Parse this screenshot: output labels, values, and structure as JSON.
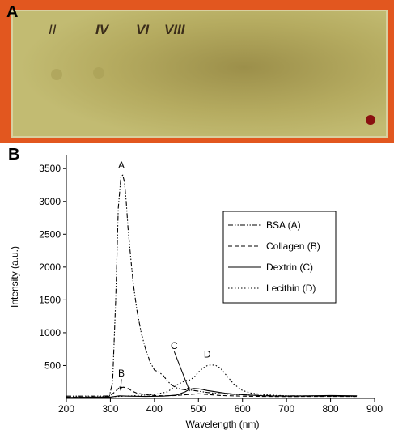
{
  "panels": {
    "a_label": "A",
    "b_label": "B"
  },
  "plate": {
    "marks": [
      "II",
      "IV",
      "VI",
      "VIII"
    ],
    "colors": {
      "background": "#e2571f",
      "plate": "#b3a85a",
      "plate_edge": "#d8d0a0",
      "ink": "#3a2c1a",
      "dot": "#8a1010"
    }
  },
  "chart_data": {
    "type": "line",
    "title": "",
    "xlabel": "Wavelength (nm)",
    "ylabel": "Intensity (a.u.)",
    "xlim": [
      200,
      900
    ],
    "ylim": [
      0,
      3700
    ],
    "xticks": [
      200,
      300,
      400,
      500,
      600,
      700,
      800,
      900
    ],
    "yticks": [
      500,
      1000,
      1500,
      2000,
      2500,
      3000,
      3500
    ],
    "grid": false,
    "legend_position": "right",
    "series": [
      {
        "name": "BSA (A)",
        "style": "dashdotdot",
        "x": [
          200,
          280,
          298,
          305,
          312,
          318,
          324,
          328,
          332,
          336,
          340,
          346,
          352,
          360,
          370,
          380,
          390,
          400,
          410,
          420,
          430,
          440,
          450,
          460,
          470,
          480,
          490,
          500,
          520,
          550,
          600,
          650,
          700,
          750,
          800,
          850,
          860
        ],
        "y": [
          35,
          35,
          40,
          250,
          1500,
          2900,
          3380,
          3400,
          3300,
          3000,
          2600,
          2150,
          1750,
          1350,
          1000,
          750,
          560,
          430,
          400,
          350,
          260,
          200,
          160,
          140,
          130,
          130,
          120,
          110,
          90,
          70,
          55,
          45,
          40,
          38,
          35,
          35,
          35
        ]
      },
      {
        "name": "Collagen (B)",
        "style": "dashed",
        "x": [
          200,
          290,
          300,
          310,
          320,
          330,
          340,
          350,
          360,
          380,
          400,
          420,
          450,
          480,
          500,
          520,
          550,
          600,
          650,
          700,
          750,
          800,
          860
        ],
        "y": [
          20,
          20,
          40,
          100,
          160,
          170,
          150,
          110,
          80,
          55,
          45,
          40,
          45,
          60,
          70,
          60,
          45,
          35,
          30,
          28,
          30,
          30,
          30
        ]
      },
      {
        "name": "Dextrin (C)",
        "style": "solid",
        "x": [
          200,
          300,
          320,
          340,
          380,
          420,
          450,
          470,
          480,
          490,
          500,
          510,
          520,
          540,
          560,
          580,
          600,
          650,
          700,
          750,
          800,
          860
        ],
        "y": [
          15,
          20,
          40,
          35,
          30,
          35,
          50,
          100,
          140,
          150,
          145,
          135,
          120,
          100,
          80,
          65,
          55,
          40,
          35,
          40,
          45,
          40
        ]
      },
      {
        "name": "Lecithin (D)",
        "style": "dotted",
        "x": [
          200,
          300,
          350,
          400,
          430,
          450,
          470,
          480,
          490,
          500,
          510,
          520,
          530,
          540,
          550,
          560,
          570,
          580,
          600,
          620,
          650,
          700,
          750,
          800,
          860
        ],
        "y": [
          20,
          25,
          40,
          60,
          100,
          200,
          270,
          280,
          320,
          400,
          460,
          500,
          510,
          500,
          460,
          380,
          300,
          220,
          120,
          80,
          55,
          40,
          35,
          35,
          30
        ]
      }
    ],
    "annotations": [
      {
        "text": "A",
        "x": 325,
        "y": 3500
      },
      {
        "text": "B",
        "x": 325,
        "y": 330,
        "arrow_to": [
          323,
          120
        ]
      },
      {
        "text": "C",
        "x": 445,
        "y": 750,
        "arrow_to": [
          480,
          110
        ]
      },
      {
        "text": "D",
        "x": 520,
        "y": 620
      }
    ]
  }
}
